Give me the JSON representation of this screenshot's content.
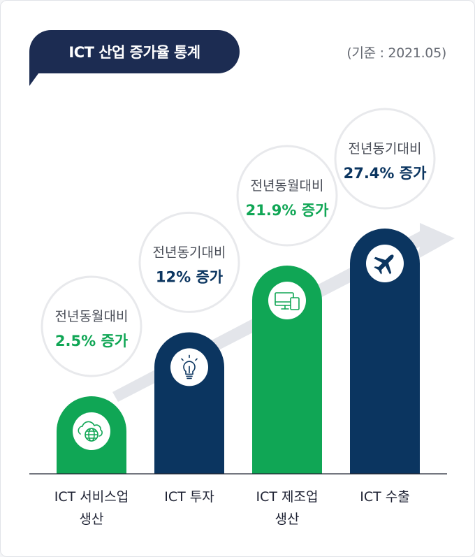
{
  "header": {
    "title": "ICT 산업 증가율 통계",
    "base_note": "(기준 : 2021.05)"
  },
  "colors": {
    "navy": "#0b3560",
    "green": "#10a655",
    "title_bg": "#1c2c52",
    "bubble_border": "#e8e9ec",
    "trend": "#e3e5ea"
  },
  "chart_data": {
    "type": "bar",
    "categories": [
      "ICT 서비스업\n생산",
      "ICT 투자",
      "ICT 제조업\n생산",
      "ICT 수출"
    ],
    "values": [
      2.5,
      12,
      21.9,
      27.4
    ],
    "series": [
      {
        "values": [
          2.5,
          12,
          21.9,
          27.4
        ]
      }
    ],
    "annotations": [
      {
        "comparison": "전년동월대비",
        "value_text": "2.5% 증가"
      },
      {
        "comparison": "전년동기대비",
        "value_text": "12% 증가"
      },
      {
        "comparison": "전년동월대비",
        "value_text": "21.9% 증가"
      },
      {
        "comparison": "전년동기대비",
        "value_text": "27.4% 증가"
      }
    ],
    "bar_colors": [
      "green",
      "navy",
      "green",
      "navy"
    ],
    "bar_icons": [
      "globe-cloud-icon",
      "lightbulb-icon",
      "devices-icon",
      "airplane-icon"
    ],
    "title": "ICT 산업 증가율 통계"
  }
}
